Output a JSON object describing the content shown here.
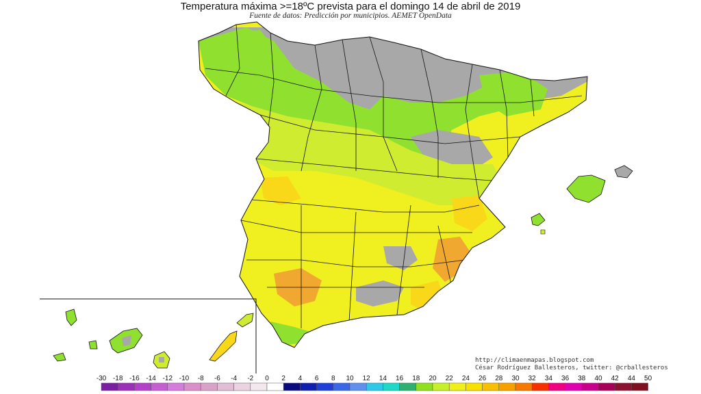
{
  "header": {
    "title": "Temperatura máxima >=18ºC prevista para el domingo 14 de abril de 2019",
    "subtitle": "Fuente de datos: Predicción por municipios. AEMET OpenData"
  },
  "credits": {
    "url": "http://climaenmapas.blogspot.com",
    "author": "César Rodríguez Ballesteros, twitter: @crballesteros"
  },
  "legend": {
    "labels": [
      "-30",
      "-18",
      "-16",
      "-14",
      "-12",
      "-10",
      "-8",
      "-6",
      "-4",
      "-2",
      "0",
      "2",
      "4",
      "6",
      "8",
      "10",
      "12",
      "14",
      "16",
      "18",
      "20",
      "22",
      "24",
      "26",
      "28",
      "30",
      "32",
      "34",
      "36",
      "38",
      "40",
      "42",
      "44",
      "50"
    ],
    "colors": [
      "#7a1fa2",
      "#9b30b8",
      "#b340c8",
      "#c45ed2",
      "#d57ddc",
      "#d98fc8",
      "#d9a3c9",
      "#e2bdd6",
      "#ebd3e1",
      "#f3e8ee",
      "#ffffff",
      "#0a0a80",
      "#0f1fb0",
      "#1f40d8",
      "#3a66e8",
      "#5f90f0",
      "#2ec8e8",
      "#20d8c8",
      "#30b070",
      "#90e020",
      "#c8f028",
      "#f0f018",
      "#f8e000",
      "#f8c000",
      "#f8a000",
      "#f87800",
      "#f83000",
      "#f00080",
      "#e000b0",
      "#c8008c",
      "#a8005a",
      "#8c1030",
      "#801020"
    ]
  },
  "colors": {
    "below18": "#a8a8a8",
    "t18_20": "#90e030",
    "t20_22": "#d0ec30",
    "t22_24": "#f0f020",
    "t24_26": "#f8d818",
    "t26_28": "#f0a830"
  }
}
